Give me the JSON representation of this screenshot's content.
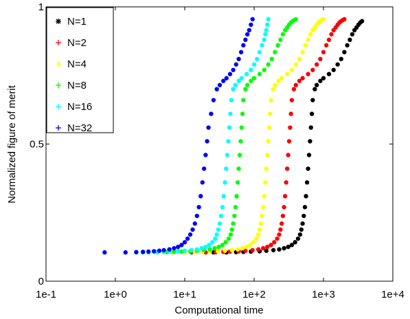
{
  "chart_data": {
    "type": "scatter",
    "xlabel": "Computational time",
    "ylabel": "Normalized figure of merit",
    "xscale": "log",
    "xlim": [
      0.1,
      10000
    ],
    "ylim": [
      0,
      1
    ],
    "xticks": [
      0.1,
      1,
      10,
      100,
      1000,
      10000
    ],
    "xtick_labels": [
      "1e-1",
      "1e+0",
      "1e+1",
      "1e+2",
      "1e+3",
      "1e+4"
    ],
    "yticks": [
      0,
      0.5,
      1
    ],
    "ytick_labels": [
      "0",
      "0.5",
      "1"
    ],
    "grid": false,
    "legend": {
      "placement": "top-left"
    },
    "series": [
      {
        "name": "N=1",
        "color": "#000000",
        "marker": "*",
        "x": [
          26,
          40,
          55,
          70,
          90,
          120,
          150,
          190,
          230,
          270,
          310,
          350,
          390,
          430,
          460,
          480,
          500,
          520,
          540,
          560,
          580,
          600,
          620,
          640,
          660,
          680,
          700,
          750,
          800,
          900,
          1000,
          1200,
          1400,
          1600,
          1800,
          2000,
          2200,
          2400,
          2600,
          2800,
          3000,
          3200,
          3400,
          3600
        ],
        "y": [
          0.105,
          0.105,
          0.106,
          0.107,
          0.108,
          0.109,
          0.111,
          0.113,
          0.116,
          0.12,
          0.125,
          0.132,
          0.142,
          0.155,
          0.17,
          0.188,
          0.21,
          0.238,
          0.27,
          0.31,
          0.36,
          0.41,
          0.46,
          0.51,
          0.56,
          0.61,
          0.66,
          0.7,
          0.715,
          0.73,
          0.74,
          0.755,
          0.77,
          0.79,
          0.81,
          0.835,
          0.86,
          0.88,
          0.9,
          0.915,
          0.925,
          0.935,
          0.943,
          0.948
        ]
      },
      {
        "name": "N=2",
        "color": "#ff0000",
        "marker": "+",
        "x": [
          12.5,
          20,
          28,
          36,
          45,
          60,
          75,
          95,
          115,
          135,
          155,
          175,
          195,
          215,
          230,
          240,
          250,
          260,
          270,
          280,
          290,
          300,
          310,
          320,
          330,
          340,
          350,
          375,
          400,
          450,
          500,
          600,
          700,
          800,
          900,
          1000,
          1100,
          1200,
          1300,
          1400,
          1500,
          1600,
          1700,
          1800,
          1900,
          2000
        ],
        "y": [
          0.105,
          0.105,
          0.106,
          0.107,
          0.108,
          0.109,
          0.111,
          0.113,
          0.116,
          0.12,
          0.125,
          0.132,
          0.142,
          0.155,
          0.17,
          0.188,
          0.21,
          0.238,
          0.27,
          0.31,
          0.36,
          0.41,
          0.46,
          0.51,
          0.56,
          0.61,
          0.66,
          0.7,
          0.715,
          0.73,
          0.74,
          0.755,
          0.77,
          0.79,
          0.81,
          0.835,
          0.86,
          0.88,
          0.9,
          0.915,
          0.925,
          0.935,
          0.943,
          0.948,
          0.952,
          0.955
        ]
      },
      {
        "name": "N=4",
        "color": "#ffff00",
        "marker": "+",
        "x": [
          6.5,
          10,
          14,
          18,
          23,
          30,
          38,
          48,
          58,
          68,
          78,
          88,
          98,
          108,
          115,
          120,
          125,
          130,
          135,
          140,
          145,
          150,
          155,
          160,
          165,
          170,
          175,
          188,
          200,
          225,
          250,
          300,
          350,
          400,
          450,
          500,
          550,
          600,
          650,
          700,
          750,
          800,
          850,
          900,
          950,
          1000
        ],
        "y": [
          0.105,
          0.105,
          0.106,
          0.107,
          0.108,
          0.109,
          0.111,
          0.113,
          0.116,
          0.12,
          0.125,
          0.132,
          0.142,
          0.155,
          0.17,
          0.188,
          0.21,
          0.238,
          0.27,
          0.31,
          0.36,
          0.41,
          0.46,
          0.51,
          0.56,
          0.61,
          0.66,
          0.7,
          0.715,
          0.73,
          0.74,
          0.755,
          0.77,
          0.79,
          0.81,
          0.835,
          0.86,
          0.88,
          0.9,
          0.915,
          0.925,
          0.935,
          0.943,
          0.948,
          0.952,
          0.955
        ]
      },
      {
        "name": "N=8",
        "color": "#00ff00",
        "marker": "+",
        "x": [
          2.5,
          4,
          5.5,
          7,
          9,
          12,
          15,
          19,
          23,
          27,
          31,
          35,
          39,
          43,
          46,
          48,
          50,
          52,
          54,
          56,
          58,
          60,
          62,
          64,
          66,
          68,
          70,
          75,
          80,
          90,
          100,
          120,
          140,
          160,
          180,
          200,
          220,
          240,
          260,
          280,
          300,
          320,
          340,
          360,
          380,
          400
        ],
        "y": [
          0.105,
          0.105,
          0.106,
          0.107,
          0.108,
          0.109,
          0.111,
          0.113,
          0.116,
          0.12,
          0.125,
          0.132,
          0.142,
          0.155,
          0.17,
          0.188,
          0.21,
          0.238,
          0.27,
          0.31,
          0.36,
          0.41,
          0.46,
          0.51,
          0.56,
          0.61,
          0.66,
          0.7,
          0.715,
          0.73,
          0.74,
          0.755,
          0.77,
          0.79,
          0.81,
          0.835,
          0.86,
          0.88,
          0.9,
          0.915,
          0.925,
          0.935,
          0.943,
          0.948,
          0.952,
          0.955
        ]
      },
      {
        "name": "N=16",
        "color": "#00ffff",
        "marker": "+",
        "x": [
          2,
          3,
          4,
          5,
          6,
          8,
          10,
          12.5,
          15,
          17.5,
          20,
          22.5,
          25,
          27.5,
          29,
          30.5,
          32,
          33.5,
          35,
          36.5,
          38,
          39.5,
          41,
          42.5,
          44,
          45.5,
          47,
          50,
          54,
          60,
          66,
          78,
          90,
          100,
          110,
          120,
          130,
          140,
          145,
          150,
          155,
          160
        ],
        "y": [
          0.105,
          0.105,
          0.106,
          0.107,
          0.108,
          0.109,
          0.111,
          0.113,
          0.116,
          0.12,
          0.125,
          0.132,
          0.142,
          0.155,
          0.17,
          0.188,
          0.21,
          0.238,
          0.27,
          0.31,
          0.36,
          0.41,
          0.46,
          0.51,
          0.56,
          0.61,
          0.66,
          0.7,
          0.715,
          0.73,
          0.74,
          0.755,
          0.77,
          0.79,
          0.81,
          0.835,
          0.86,
          0.88,
          0.9,
          0.915,
          0.935,
          0.955
        ]
      },
      {
        "name": "N=32",
        "color": "#0000ff",
        "marker": "+",
        "x": [
          0.7,
          1.4,
          2,
          2.5,
          3,
          3.6,
          4.3,
          5,
          6,
          7,
          8,
          9,
          10,
          11,
          12,
          13,
          14,
          15,
          16,
          17,
          18,
          19,
          20,
          21,
          22,
          24,
          26,
          29,
          32,
          36,
          40,
          45,
          50,
          55,
          60,
          65,
          70,
          75,
          80,
          85,
          90,
          95
        ],
        "y": [
          0.105,
          0.105,
          0.106,
          0.107,
          0.108,
          0.109,
          0.111,
          0.113,
          0.116,
          0.12,
          0.125,
          0.132,
          0.142,
          0.155,
          0.17,
          0.188,
          0.21,
          0.238,
          0.27,
          0.31,
          0.36,
          0.41,
          0.46,
          0.51,
          0.56,
          0.61,
          0.66,
          0.7,
          0.715,
          0.73,
          0.74,
          0.755,
          0.77,
          0.79,
          0.81,
          0.835,
          0.86,
          0.88,
          0.9,
          0.915,
          0.935,
          0.955
        ]
      }
    ]
  }
}
